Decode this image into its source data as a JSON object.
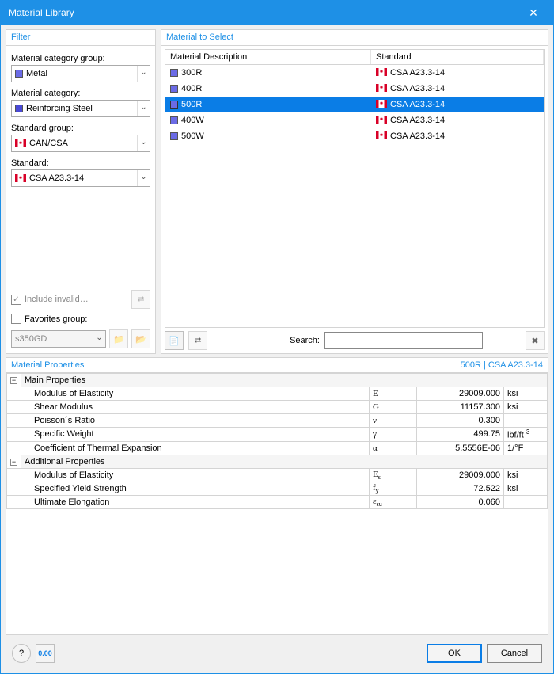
{
  "window": {
    "title": "Material Library"
  },
  "filter": {
    "header": "Filter",
    "labels": {
      "group": "Material category group:",
      "category": "Material category:",
      "stdgroup": "Standard group:",
      "standard": "Standard:"
    },
    "values": {
      "group": "Metal",
      "category": "Reinforcing Steel",
      "stdgroup": "CAN/CSA",
      "standard": "CSA A23.3-14"
    },
    "include_invalid": "Include invalid…",
    "favorites_group": "Favorites group:",
    "favorites_value": "s350GD"
  },
  "select": {
    "header": "Material to Select",
    "columns": {
      "desc": "Material Description",
      "standard": "Standard"
    },
    "rows": [
      {
        "desc": "300R",
        "standard": "CSA A23.3-14",
        "selected": false
      },
      {
        "desc": "400R",
        "standard": "CSA A23.3-14",
        "selected": false
      },
      {
        "desc": "500R",
        "standard": "CSA A23.3-14",
        "selected": true
      },
      {
        "desc": "400W",
        "standard": "CSA A23.3-14",
        "selected": false
      },
      {
        "desc": "500W",
        "standard": "CSA A23.3-14",
        "selected": false
      }
    ],
    "search_label": "Search:",
    "search_value": ""
  },
  "props": {
    "header": "Material Properties",
    "subtitle": "500R  |  CSA A23.3-14",
    "groups": [
      {
        "name": "Main Properties",
        "rows": [
          {
            "name": "Modulus of Elasticity",
            "sym": "E",
            "val": "29009.000",
            "unit": "ksi"
          },
          {
            "name": "Shear Modulus",
            "sym": "G",
            "val": "11157.300",
            "unit": "ksi"
          },
          {
            "name": "Poisson´s Ratio",
            "sym": "ν",
            "val": "0.300",
            "unit": ""
          },
          {
            "name": "Specific Weight",
            "sym": "γ",
            "val": "499.75",
            "unit": "lbf/ft³",
            "unit_html": "lbf/ft&nbsp;<sup>3</sup>"
          },
          {
            "name": "Coefficient of Thermal Expansion",
            "sym": "α",
            "val": "5.5556E-06",
            "unit": "1/°F"
          }
        ]
      },
      {
        "name": "Additional Properties",
        "rows": [
          {
            "name": "Modulus of Elasticity",
            "sym_html": "E<span class='sub'>s</span>",
            "val": "29009.000",
            "unit": "ksi"
          },
          {
            "name": "Specified Yield Strength",
            "sym_html": "f<span class='sub'>y</span>",
            "val": "72.522",
            "unit": "ksi"
          },
          {
            "name": "Ultimate Elongation",
            "sym_html": "ε<span class='sub'>su</span>",
            "val": "0.060",
            "unit": ""
          }
        ]
      }
    ]
  },
  "buttons": {
    "ok": "OK",
    "cancel": "Cancel"
  },
  "colors": {
    "accent": "#1e90e6",
    "selection": "#0a7de6",
    "swatch": "#6b6be6",
    "border": "#d4d4d4"
  }
}
